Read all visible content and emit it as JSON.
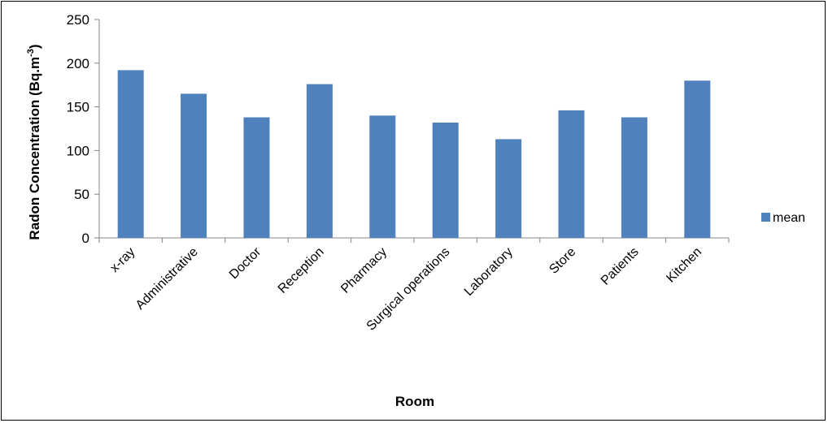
{
  "chart_data": {
    "type": "bar",
    "categories": [
      "x-ray",
      "Administrative",
      "Doctor",
      "Reception",
      "Pharmacy",
      "Surgical operations",
      "Laboratory",
      "Store",
      "Patients",
      "Kitchen"
    ],
    "series": [
      {
        "name": "mean",
        "values": [
          192,
          165,
          138,
          176,
          140,
          132,
          113,
          146,
          138,
          180
        ],
        "color": "#4f81bd"
      }
    ],
    "xlabel": "Room",
    "ylabel": "Radon Concentration (Bq.m",
    "ylabel_superscript": "-3",
    "ylabel_suffix": ")",
    "ylim": [
      0,
      250
    ],
    "yticks": [
      0,
      50,
      100,
      150,
      200,
      250
    ],
    "grid": false,
    "legend": "right"
  }
}
